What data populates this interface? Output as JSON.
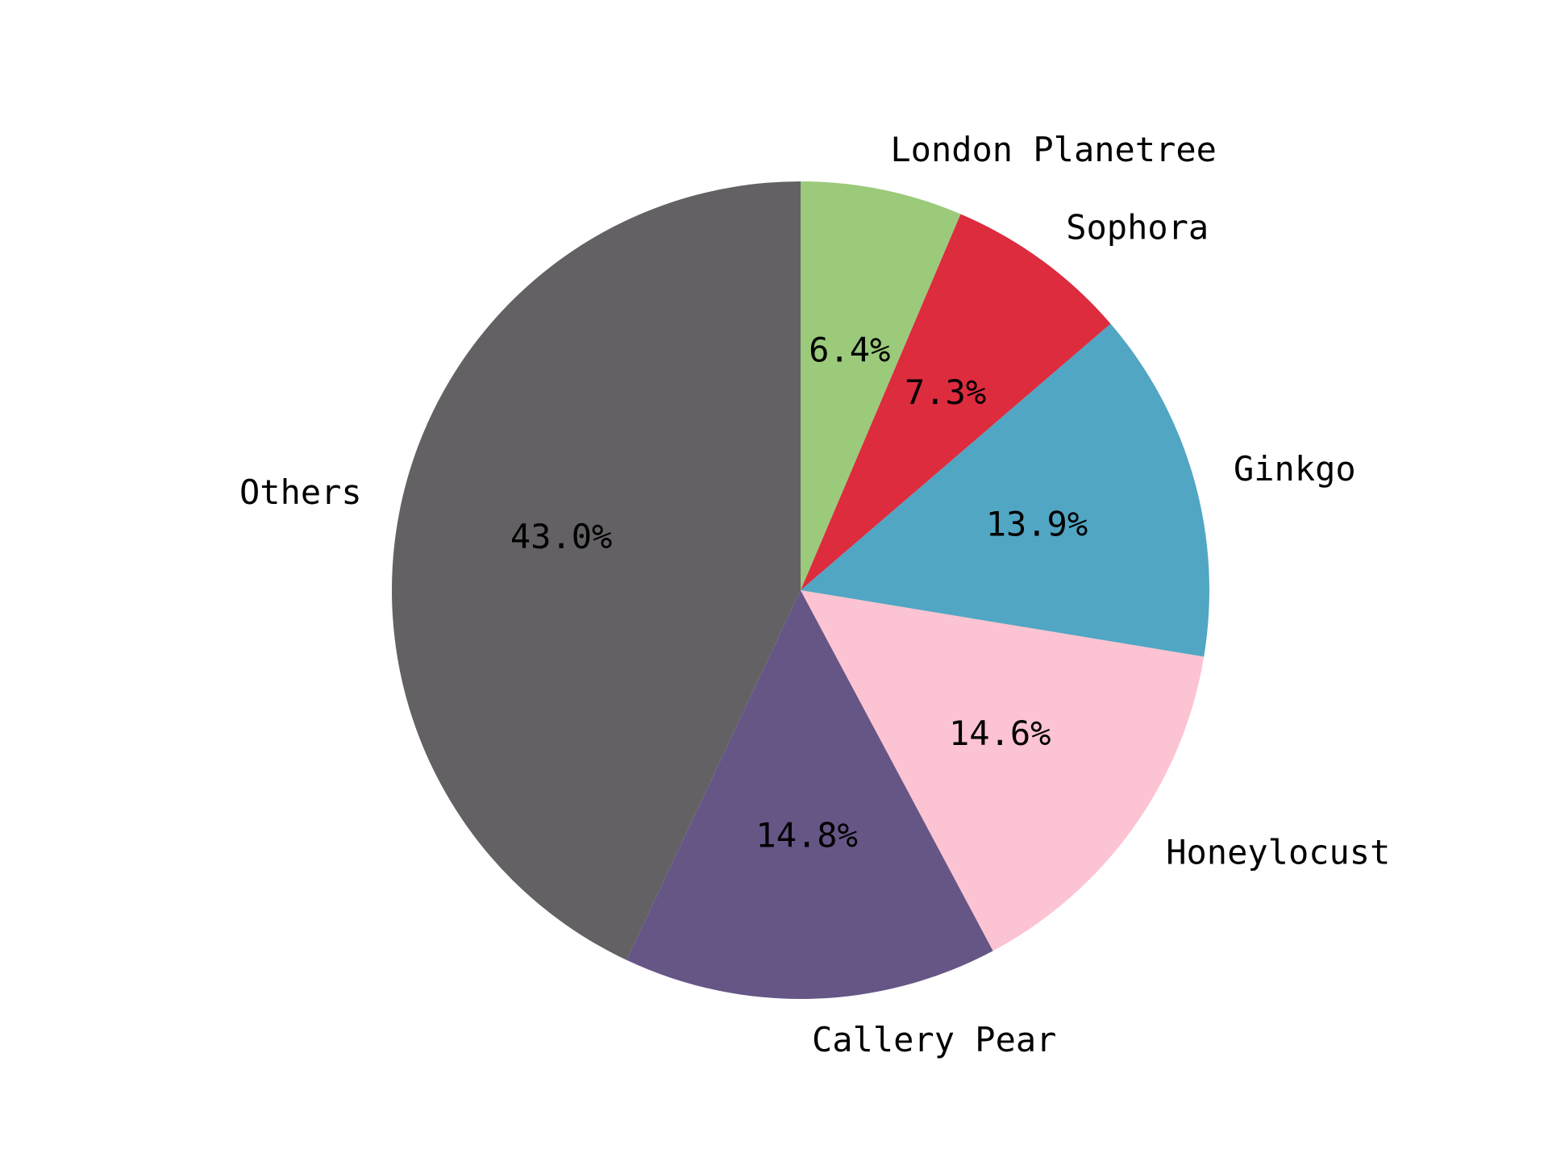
{
  "chart_data": {
    "type": "pie",
    "title": "",
    "slices": [
      {
        "label": "Others",
        "value": 43.0,
        "pct_label": "43.0%",
        "color": "#636164"
      },
      {
        "label": "Callery Pear",
        "value": 14.8,
        "pct_label": "14.8%",
        "color": "#665686"
      },
      {
        "label": "Honeylocust",
        "value": 14.6,
        "pct_label": "14.6%",
        "color": "#fcc3d2"
      },
      {
        "label": "Ginkgo",
        "value": 13.9,
        "pct_label": "13.9%",
        "color": "#51a6c3"
      },
      {
        "label": "Sophora",
        "value": 7.3,
        "pct_label": "7.3%",
        "color": "#dc2c3e"
      },
      {
        "label": "London Planetree",
        "value": 6.4,
        "pct_label": "6.4%",
        "color": "#9bca7b"
      }
    ],
    "start_angle_deg": 90,
    "direction": "counterclockwise",
    "legend": "none"
  }
}
